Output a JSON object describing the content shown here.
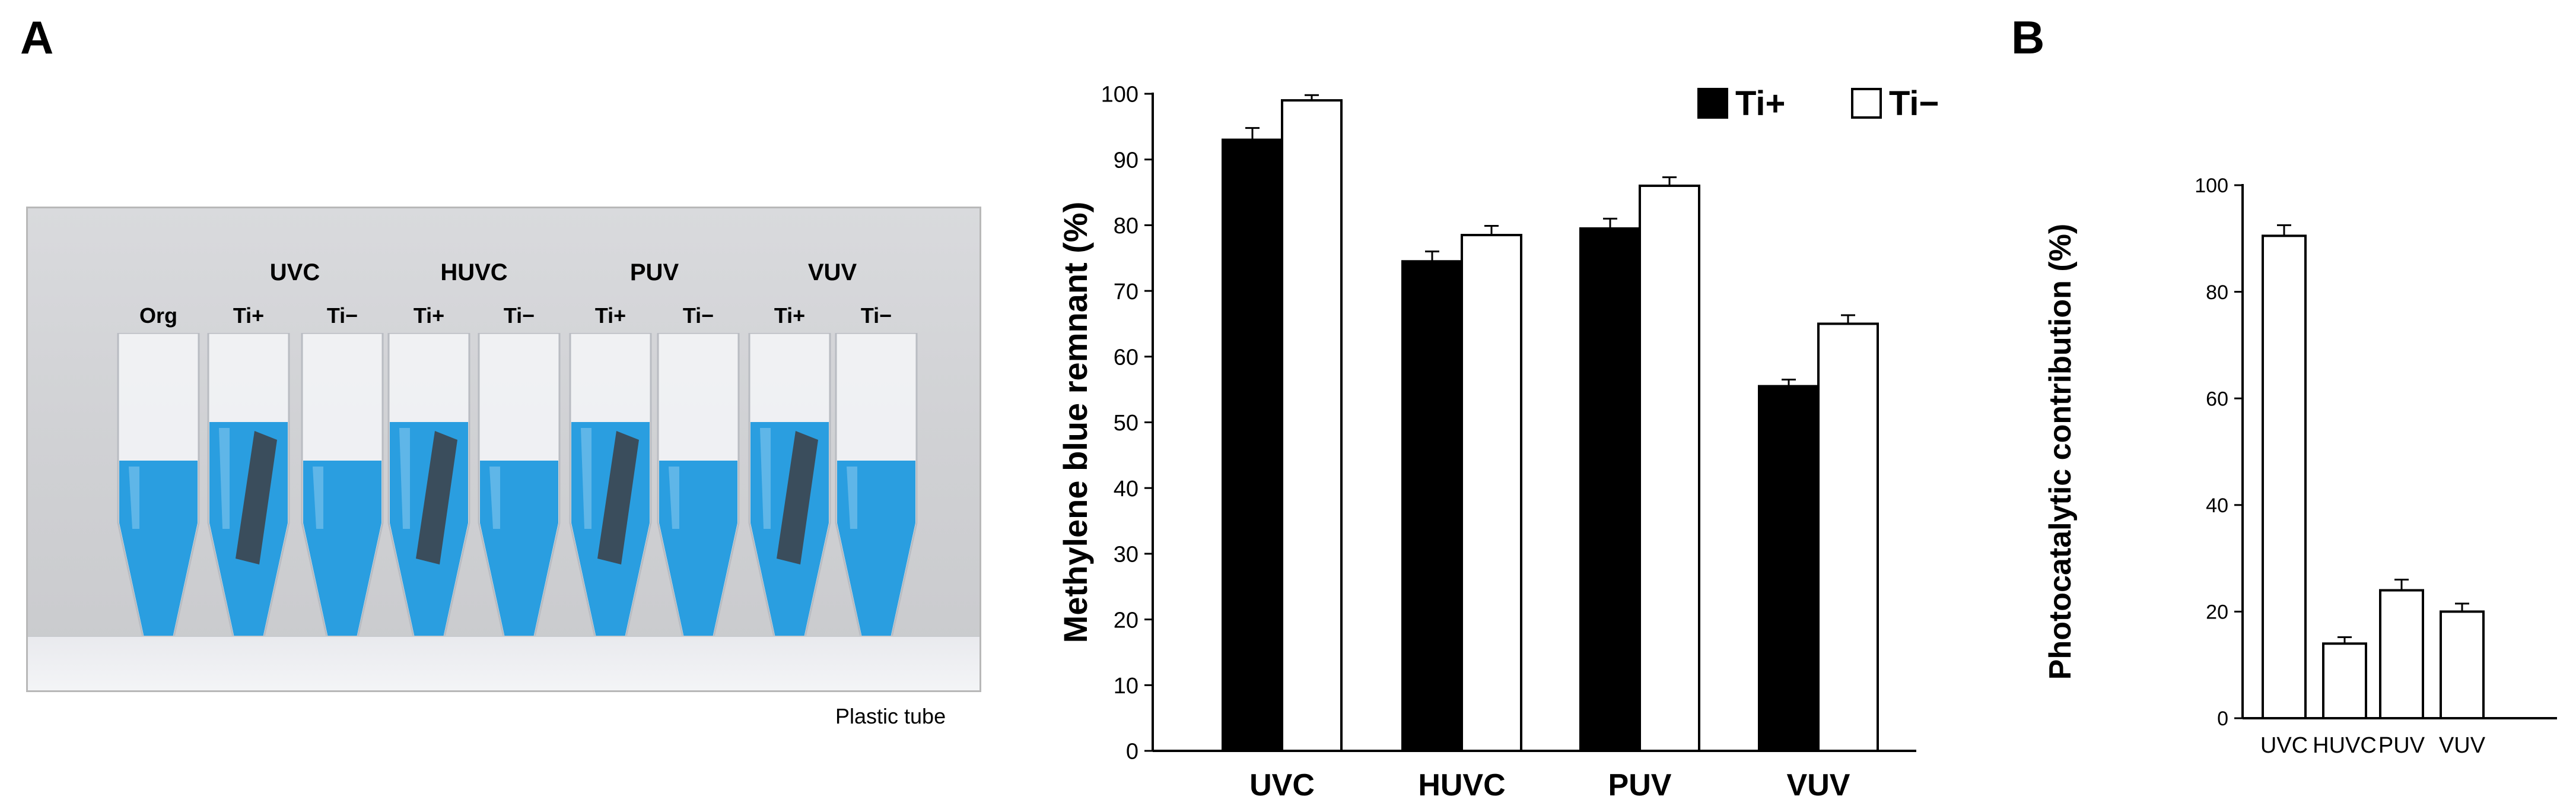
{
  "panels": {
    "a_label": "A",
    "b_label": "B"
  },
  "photo": {
    "caption": "Plastic tube",
    "groups": [
      {
        "name": "",
        "tubes": [
          {
            "label": "Org",
            "ti": false
          }
        ]
      },
      {
        "name": "UVC",
        "tubes": [
          {
            "label": "Ti+",
            "ti": true
          },
          {
            "label": "Ti−",
            "ti": false
          }
        ]
      },
      {
        "name": "HUVC",
        "tubes": [
          {
            "label": "Ti+",
            "ti": true
          },
          {
            "label": "Ti−",
            "ti": false
          }
        ]
      },
      {
        "name": "PUV",
        "tubes": [
          {
            "label": "Ti+",
            "ti": true
          },
          {
            "label": "Ti−",
            "ti": false
          }
        ]
      },
      {
        "name": "VUV",
        "tubes": [
          {
            "label": "Ti+",
            "ti": true
          },
          {
            "label": "Ti−",
            "ti": false
          }
        ]
      }
    ],
    "colors": {
      "liquid": "#2a9ee0",
      "rod": "#3c4650",
      "background": "#d4d5d8"
    }
  },
  "chart_data": [
    {
      "type": "bar",
      "ylabel": "Methylene blue remnant (%)",
      "xlabel": "",
      "categories": [
        "UVC",
        "HUVC",
        "PUV",
        "VUV"
      ],
      "series": [
        {
          "name": "Ti+",
          "color": "#000000",
          "values": [
            93,
            74.5,
            79.5,
            55.5
          ],
          "errors": [
            1.8,
            1.5,
            1.5,
            1.0
          ]
        },
        {
          "name": "Ti−",
          "color": "#ffffff",
          "values": [
            99,
            78.5,
            86,
            65
          ],
          "errors": [
            0.8,
            1.4,
            1.3,
            1.3
          ]
        }
      ],
      "ylim": [
        0,
        100
      ],
      "yticks": [
        0,
        10,
        20,
        30,
        40,
        50,
        60,
        70,
        80,
        90,
        100
      ],
      "legend": "top-right",
      "grid": false
    },
    {
      "type": "bar",
      "ylabel": "Photocatalytic contribution (%)",
      "xlabel": "",
      "categories": [
        "UVC",
        "HUVC",
        "PUV",
        "VUV"
      ],
      "series": [
        {
          "name": "",
          "color": "#ffffff",
          "values": [
            90.5,
            14,
            24,
            20
          ],
          "errors": [
            2.0,
            1.2,
            2.0,
            1.5
          ]
        }
      ],
      "ylim": [
        0,
        100
      ],
      "yticks": [
        0,
        20,
        40,
        60,
        80,
        100
      ],
      "legend": "none",
      "grid": false
    }
  ]
}
